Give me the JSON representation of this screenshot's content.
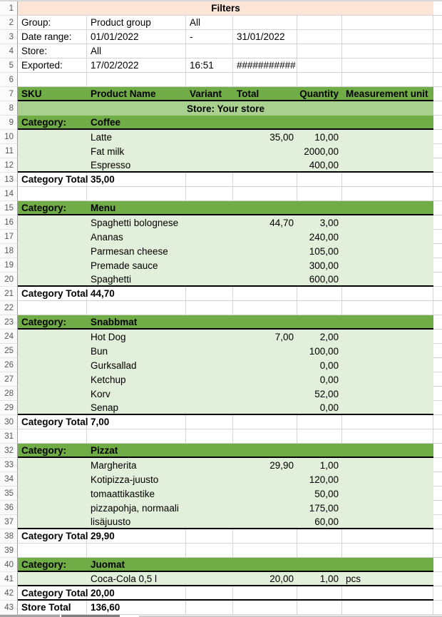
{
  "colors": {
    "header_green": "#70AD47",
    "banner_green": "#A9D08E",
    "data_green": "#E2EFDA",
    "filters_tan": "#FCE4D6",
    "gridline": "#D4D4D4"
  },
  "filters": {
    "title": "Filters",
    "rows": [
      {
        "label": "Group:",
        "value1": "Product group",
        "value2": "All",
        "value3": ""
      },
      {
        "label": "Date range:",
        "value1": "01/01/2022",
        "value2": "-",
        "value3": "31/01/2022"
      },
      {
        "label": "Store:",
        "value1": "All",
        "value2": "",
        "value3": ""
      },
      {
        "label": "Exported:",
        "value1": "17/02/2022",
        "value2": "16:51",
        "value3": "###########"
      }
    ]
  },
  "table": {
    "column_headers": [
      "SKU",
      "Product Name",
      "Variant",
      "Total",
      "Quantity",
      "Measurement unit"
    ],
    "store_banner": "Store: Your store",
    "category_label": "Category:",
    "category_total_label": "Category Total",
    "store_total_label": "Store Total",
    "store_total": "136,60",
    "categories": [
      {
        "name": "Coffee",
        "category_total": "35,00",
        "items": [
          {
            "product": "Latte",
            "variant": "",
            "total": "35,00",
            "quantity": "10,00",
            "unit": ""
          },
          {
            "product": "Fat milk",
            "variant": "",
            "total": "",
            "quantity": "2000,00",
            "unit": ""
          },
          {
            "product": "Espresso",
            "variant": "",
            "total": "",
            "quantity": "400,00",
            "unit": ""
          }
        ]
      },
      {
        "name": "Menu",
        "category_total": "44,70",
        "items": [
          {
            "product": "Spaghetti bolognese",
            "variant": "",
            "total": "44,70",
            "quantity": "3,00",
            "unit": ""
          },
          {
            "product": "Ananas",
            "variant": "",
            "total": "",
            "quantity": "240,00",
            "unit": ""
          },
          {
            "product": "Parmesan cheese",
            "variant": "",
            "total": "",
            "quantity": "105,00",
            "unit": ""
          },
          {
            "product": "Premade sauce",
            "variant": "",
            "total": "",
            "quantity": "300,00",
            "unit": ""
          },
          {
            "product": "Spaghetti",
            "variant": "",
            "total": "",
            "quantity": "600,00",
            "unit": ""
          }
        ]
      },
      {
        "name": "Snabbmat",
        "category_total": "7,00",
        "items": [
          {
            "product": "Hot Dog",
            "variant": "",
            "total": "7,00",
            "quantity": "2,00",
            "unit": ""
          },
          {
            "product": "Bun",
            "variant": "",
            "total": "",
            "quantity": "100,00",
            "unit": ""
          },
          {
            "product": "Gurksallad",
            "variant": "",
            "total": "",
            "quantity": "0,00",
            "unit": ""
          },
          {
            "product": "Ketchup",
            "variant": "",
            "total": "",
            "quantity": "0,00",
            "unit": ""
          },
          {
            "product": "Korv",
            "variant": "",
            "total": "",
            "quantity": "52,00",
            "unit": ""
          },
          {
            "product": "Senap",
            "variant": "",
            "total": "",
            "quantity": "0,00",
            "unit": ""
          }
        ]
      },
      {
        "name": "Pizzat",
        "category_total": "29,90",
        "items": [
          {
            "product": "Margherita",
            "variant": "",
            "total": "29,90",
            "quantity": "1,00",
            "unit": ""
          },
          {
            "product": "Kotipizza-juusto",
            "variant": "",
            "total": "",
            "quantity": "120,00",
            "unit": ""
          },
          {
            "product": "tomaattikastike",
            "variant": "",
            "total": "",
            "quantity": "50,00",
            "unit": ""
          },
          {
            "product": "pizzapohja, normaali",
            "variant": "",
            "total": "",
            "quantity": "175,00",
            "unit": ""
          },
          {
            "product": "lisäjuusto",
            "variant": "",
            "total": "",
            "quantity": "60,00",
            "unit": ""
          }
        ]
      },
      {
        "name": "Juomat",
        "category_total": "20,00",
        "items": [
          {
            "product": "Coca-Cola 0,5 l",
            "variant": "",
            "total": "20,00",
            "quantity": "1,00",
            "unit": "pcs"
          }
        ]
      }
    ]
  },
  "row_count": 43
}
